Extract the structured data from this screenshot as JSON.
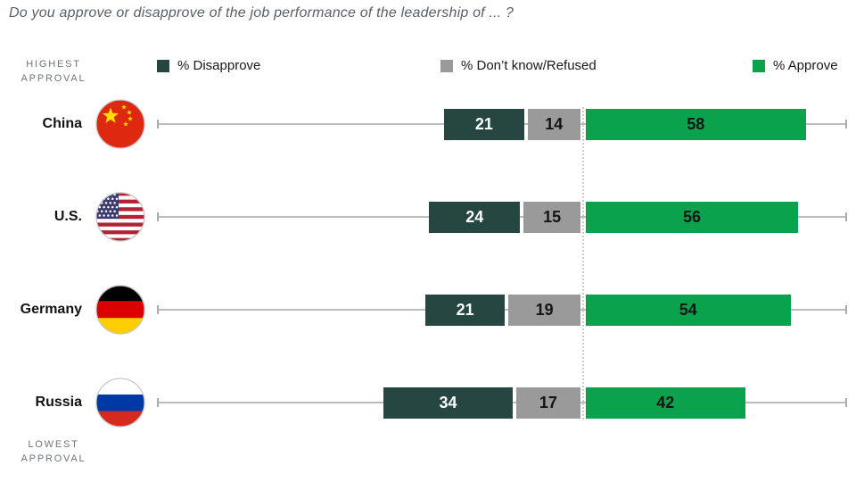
{
  "title": "Do you approve or disapprove of the job performance of the leadership of ... ?",
  "notes": {
    "highest": [
      "HIGHEST",
      "APPROVAL"
    ],
    "lowest": [
      "LOWEST",
      "APPROVAL"
    ]
  },
  "legend": [
    {
      "label": "% Disapprove",
      "color": "#254641"
    },
    {
      "label": "% Don’t know/Refused",
      "color": "#9a9a9a"
    },
    {
      "label": "% Approve",
      "color": "#0aa24d"
    }
  ],
  "rows": [
    {
      "country": "China",
      "flag_icon": "china-flag-icon"
    },
    {
      "country": "U.S.",
      "flag_icon": "us-flag-icon"
    },
    {
      "country": "Germany",
      "flag_icon": "germany-flag-icon"
    },
    {
      "country": "Russia",
      "flag_icon": "russia-flag-icon"
    }
  ],
  "chart_data": {
    "type": "bar",
    "orientation": "horizontal-diverging",
    "categories": [
      "China",
      "U.S.",
      "Germany",
      "Russia"
    ],
    "series": [
      {
        "name": "% Disapprove",
        "values": [
          21,
          24,
          21,
          34
        ],
        "color": "#254641",
        "text_color": "#ffffff",
        "side": "left"
      },
      {
        "name": "% Don't know/Refused",
        "values": [
          14,
          15,
          19,
          17
        ],
        "color": "#9a9a9a",
        "text_color": "#141414",
        "side": "left"
      },
      {
        "name": "% Approve",
        "values": [
          58,
          56,
          54,
          42
        ],
        "color": "#0aa24d",
        "text_color": "#141414",
        "side": "right"
      }
    ],
    "title": "Do you approve or disapprove of the job performance of the leadership of ... ?",
    "value_unit": "%",
    "sort_note": "rows ordered from highest approval (China) to lowest approval (Russia)",
    "annotations": [
      "HIGHEST APPROVAL",
      "LOWEST APPROVAL"
    ],
    "legend_position": "top",
    "grid": false,
    "divider": "dotted vertical line separating Don't know/Refused bars from Approve bars"
  },
  "colors": {
    "background": "#ffffff",
    "baseline": "#bcbcbc",
    "divider_dotted": "#cfcfcf",
    "title_text": "#5a6067",
    "note_text": "#6e747c",
    "flag_ring": "#c6c6c6"
  }
}
